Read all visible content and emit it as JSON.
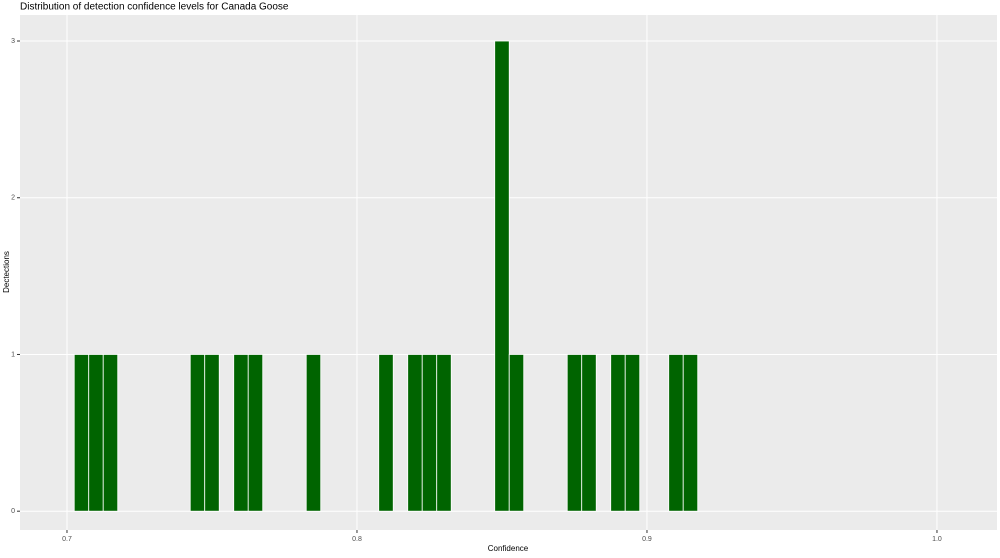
{
  "chart_data": {
    "type": "histogram",
    "title": "Distribution of detection confidence levels for Canada Goose",
    "x_label": "Confidence",
    "y_label": "Dectections",
    "bins": [
      0.7025,
      0.7075,
      0.7125,
      0.7175,
      0.7225,
      0.7275,
      0.7325,
      0.7375,
      0.7425,
      0.7475,
      0.7525,
      0.7575,
      0.7625,
      0.7675,
      0.7725,
      0.7775,
      0.7825,
      0.7875,
      0.7925,
      0.7975,
      0.8025,
      0.8075,
      0.8125,
      0.8175,
      0.8225,
      0.8275,
      0.8325,
      0.8375,
      0.8425,
      0.8475,
      0.8525,
      0.8575,
      0.8625,
      0.8675,
      0.8725,
      0.8775,
      0.8825,
      0.8875,
      0.8925,
      0.8975,
      0.9025,
      0.9075,
      0.9125,
      0.9175
    ],
    "values": [
      1,
      1,
      1,
      0,
      0,
      0,
      0,
      0,
      1,
      1,
      0,
      1,
      1,
      0,
      0,
      0,
      1,
      0,
      0,
      0,
      0,
      1,
      0,
      1,
      1,
      1,
      0,
      0,
      0,
      3,
      1,
      0,
      0,
      0,
      1,
      1,
      0,
      1,
      1,
      0,
      0,
      1,
      1
    ],
    "color": "#006400",
    "xlim": [
      0.6838,
      1.0207
    ],
    "xticks": [
      0.7,
      0.8,
      0.9,
      {
        "value": 1,
        "label": "1.0"
      }
    ],
    "ylim": [
      -0.12,
      3.166
    ],
    "yticks": [
      0,
      1,
      2,
      3
    ],
    "grid": true
  }
}
